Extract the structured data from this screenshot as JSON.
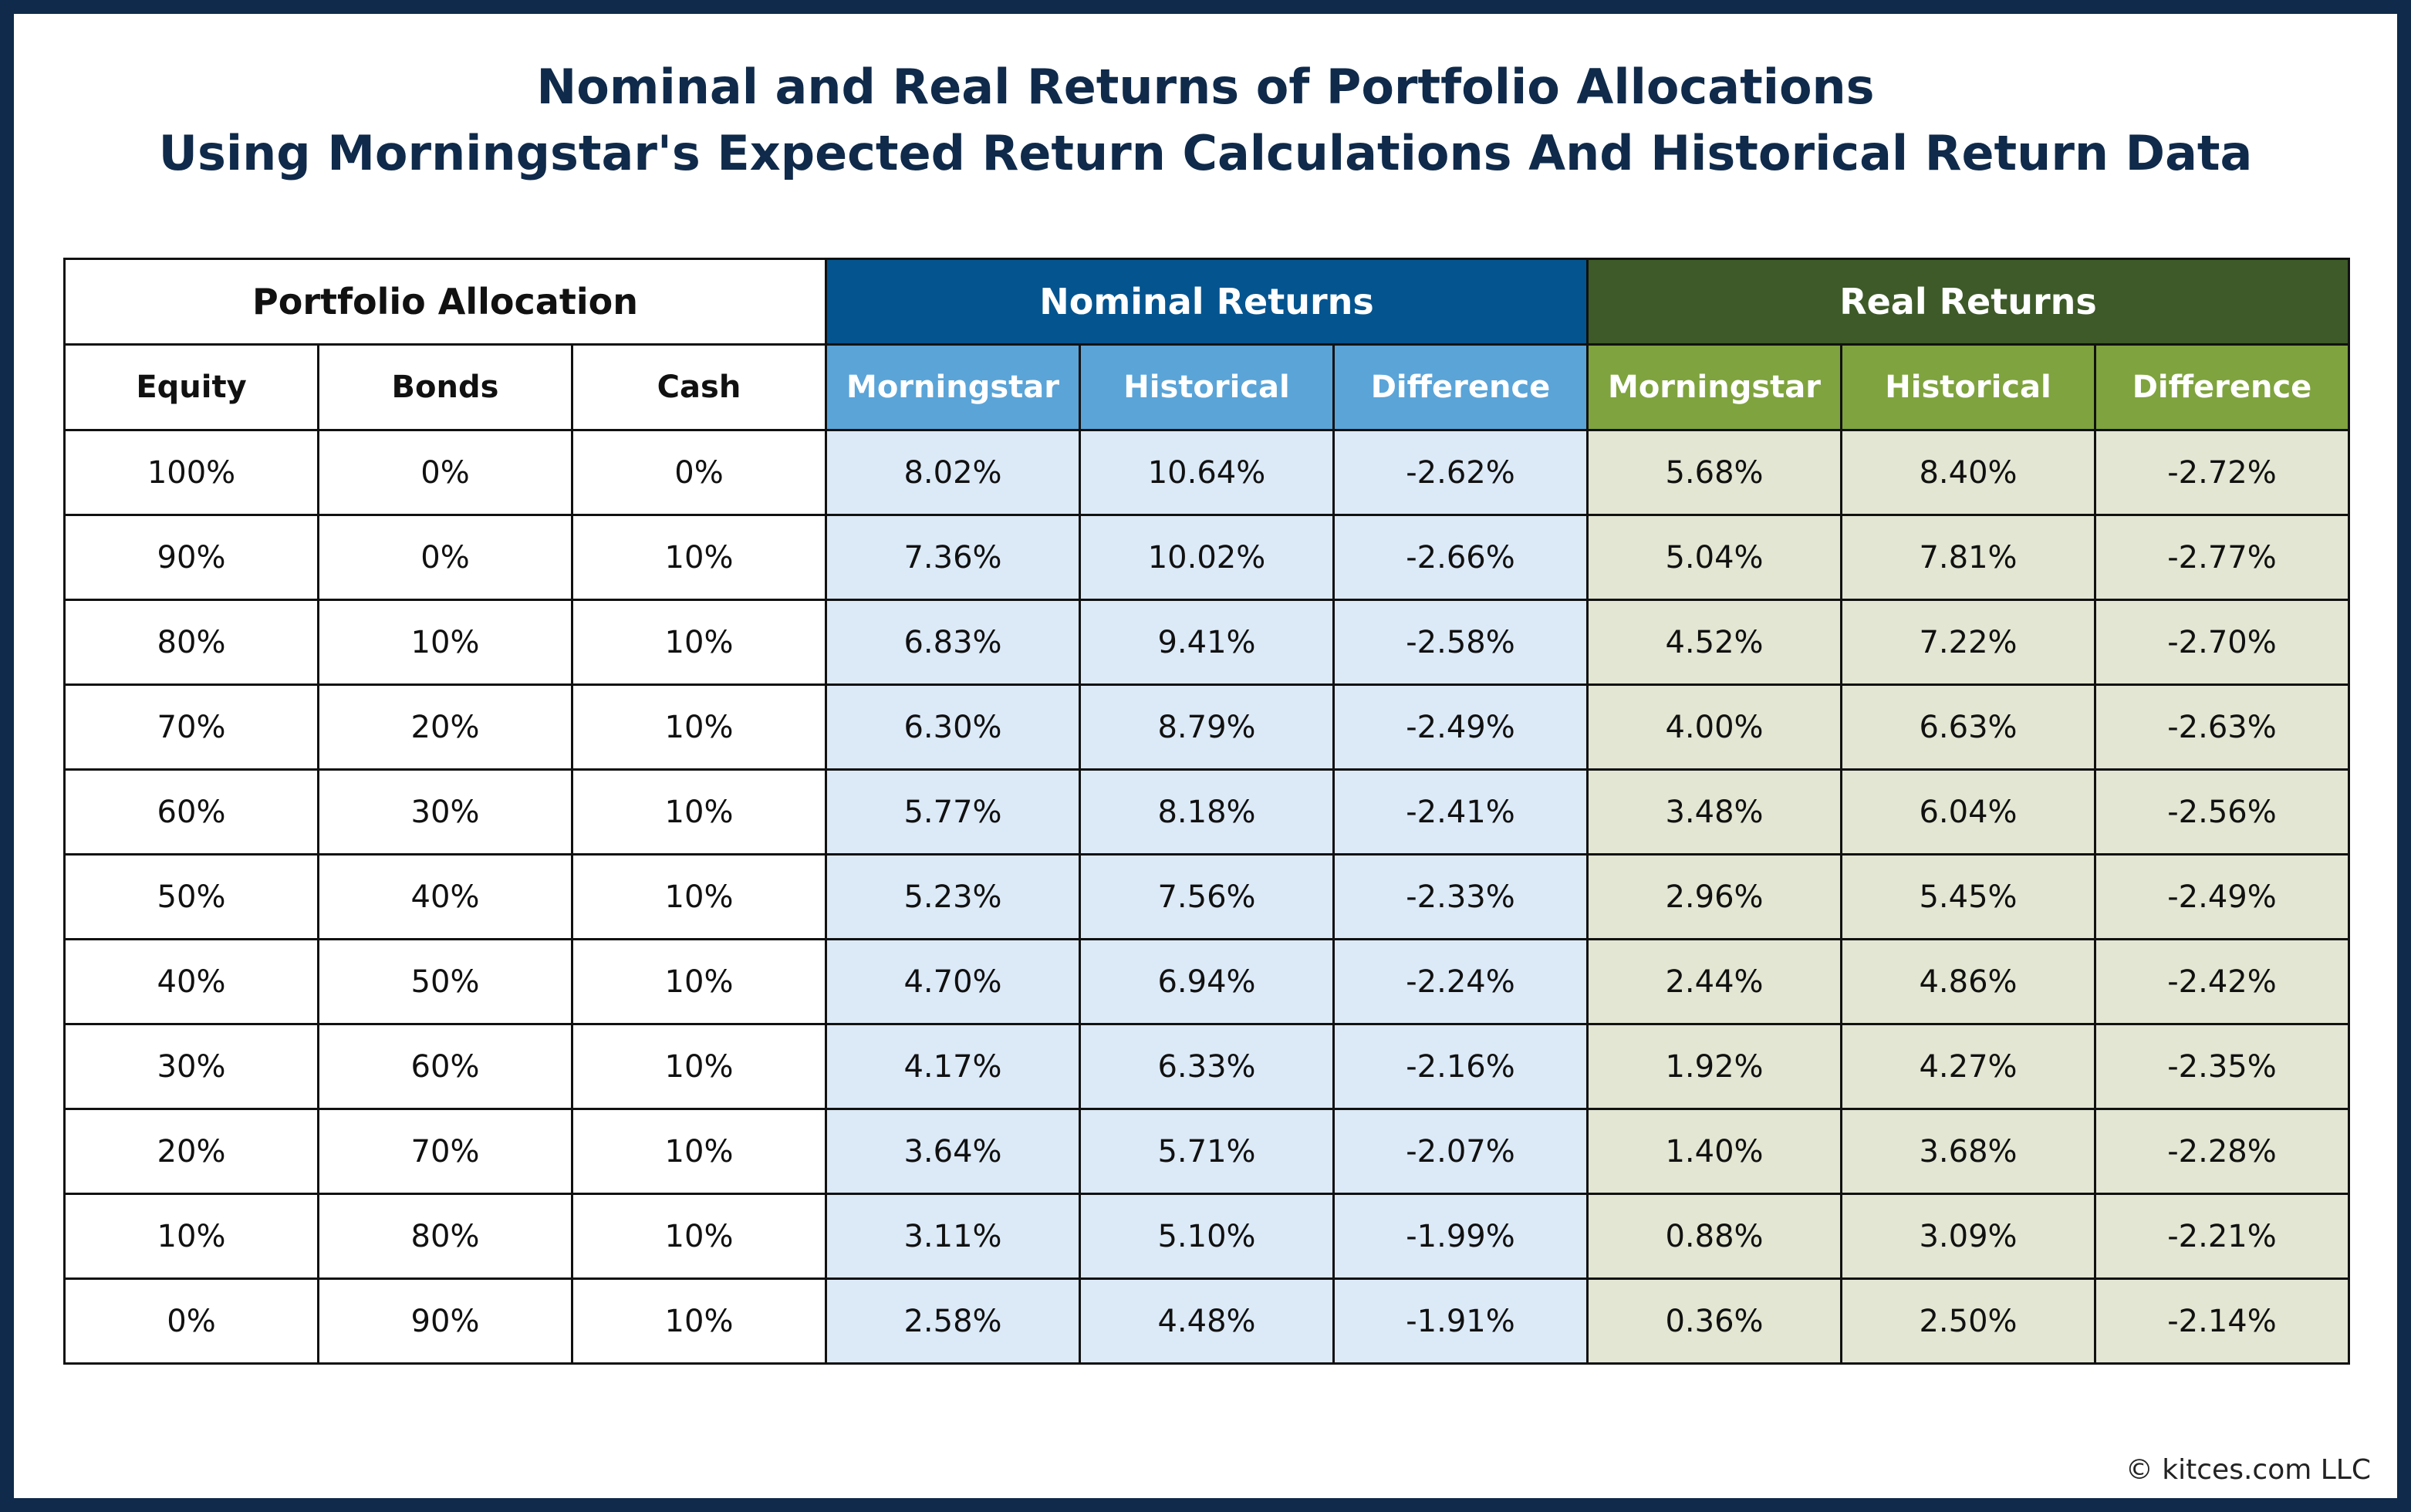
{
  "title": {
    "line1": "Nominal and Real Returns of Portfolio Allocations",
    "line2": "Using Morningstar's Expected Return Calculations And Historical Return Data"
  },
  "colors": {
    "frame": "#0f2a4a",
    "nominal_header": "#04548f",
    "nominal_subheader": "#5aa4d8",
    "nominal_cell": "#dce9f7",
    "real_header": "#3d5a28",
    "real_subheader": "#7fa33e",
    "real_cell": "#e2e6d2"
  },
  "chart_data": {
    "type": "table",
    "groups": [
      {
        "label": "Portfolio Allocation",
        "columns": [
          "Equity",
          "Bonds",
          "Cash"
        ]
      },
      {
        "label": "Nominal Returns",
        "columns": [
          "Morningstar",
          "Historical",
          "Difference"
        ]
      },
      {
        "label": "Real Returns",
        "columns": [
          "Morningstar",
          "Historical",
          "Difference"
        ]
      }
    ],
    "rows": [
      [
        "100%",
        "0%",
        "0%",
        "8.02%",
        "10.64%",
        "-2.62%",
        "5.68%",
        "8.40%",
        "-2.72%"
      ],
      [
        "90%",
        "0%",
        "10%",
        "7.36%",
        "10.02%",
        "-2.66%",
        "5.04%",
        "7.81%",
        "-2.77%"
      ],
      [
        "80%",
        "10%",
        "10%",
        "6.83%",
        "9.41%",
        "-2.58%",
        "4.52%",
        "7.22%",
        "-2.70%"
      ],
      [
        "70%",
        "20%",
        "10%",
        "6.30%",
        "8.79%",
        "-2.49%",
        "4.00%",
        "6.63%",
        "-2.63%"
      ],
      [
        "60%",
        "30%",
        "10%",
        "5.77%",
        "8.18%",
        "-2.41%",
        "3.48%",
        "6.04%",
        "-2.56%"
      ],
      [
        "50%",
        "40%",
        "10%",
        "5.23%",
        "7.56%",
        "-2.33%",
        "2.96%",
        "5.45%",
        "-2.49%"
      ],
      [
        "40%",
        "50%",
        "10%",
        "4.70%",
        "6.94%",
        "-2.24%",
        "2.44%",
        "4.86%",
        "-2.42%"
      ],
      [
        "30%",
        "60%",
        "10%",
        "4.17%",
        "6.33%",
        "-2.16%",
        "1.92%",
        "4.27%",
        "-2.35%"
      ],
      [
        "20%",
        "70%",
        "10%",
        "3.64%",
        "5.71%",
        "-2.07%",
        "1.40%",
        "3.68%",
        "-2.28%"
      ],
      [
        "10%",
        "80%",
        "10%",
        "3.11%",
        "5.10%",
        "-1.99%",
        "0.88%",
        "3.09%",
        "-2.21%"
      ],
      [
        "0%",
        "90%",
        "10%",
        "2.58%",
        "4.48%",
        "-1.91%",
        "0.36%",
        "2.50%",
        "-2.14%"
      ]
    ]
  },
  "footer": "© kitces.com LLC"
}
